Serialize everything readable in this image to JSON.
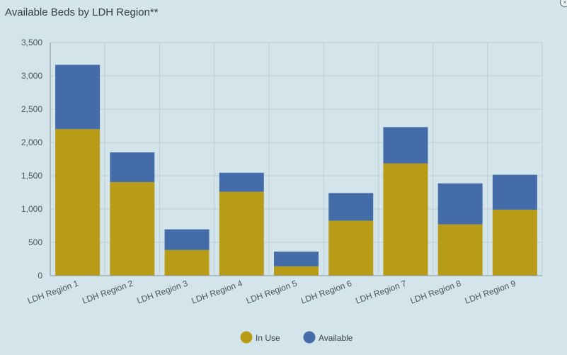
{
  "header": {
    "title": "Available Beds by LDH Region**",
    "close_icon_glyph": "×"
  },
  "chart_data": {
    "type": "bar",
    "stacked": true,
    "title": "Available Beds by LDH Region**",
    "xlabel": "",
    "ylabel": "",
    "ylim": [
      0,
      3500
    ],
    "yticks": [
      0,
      500,
      1000,
      1500,
      2000,
      2500,
      3000,
      3500
    ],
    "ytick_labels": [
      "0",
      "500",
      "1,000",
      "1,500",
      "2,000",
      "2,500",
      "3,000",
      "3,500"
    ],
    "categories": [
      "LDH Region 1",
      "LDH Region 2",
      "LDH Region 3",
      "LDH Region 4",
      "LDH Region 5",
      "LDH Region 6",
      "LDH Region 7",
      "LDH Region 8",
      "LDH Region 9"
    ],
    "series": [
      {
        "name": "In Use",
        "color": "#b89b17",
        "values": [
          2200,
          1405,
          385,
          1260,
          140,
          825,
          1685,
          770,
          990
        ]
      },
      {
        "name": "Available",
        "color": "#436ca8",
        "values": [
          965,
          445,
          310,
          285,
          220,
          415,
          545,
          615,
          525
        ]
      }
    ],
    "grid": true,
    "legend": "bottom-center"
  }
}
